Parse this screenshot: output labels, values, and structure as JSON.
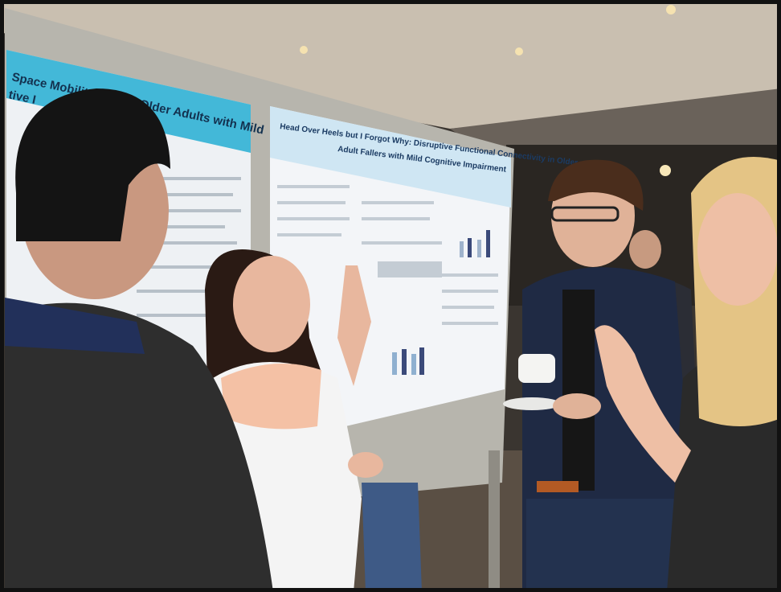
{
  "posters": [
    {
      "title_lines": [
        "Space Mobility among Older Adults with Mild",
        "tive I"
      ]
    },
    {
      "title_lines": [
        "Head Over Heels but I Forgot Why: Disruptive Functional Connectivity in Older",
        "Adult Fallers with Mild Cognitive Impairment"
      ]
    }
  ]
}
